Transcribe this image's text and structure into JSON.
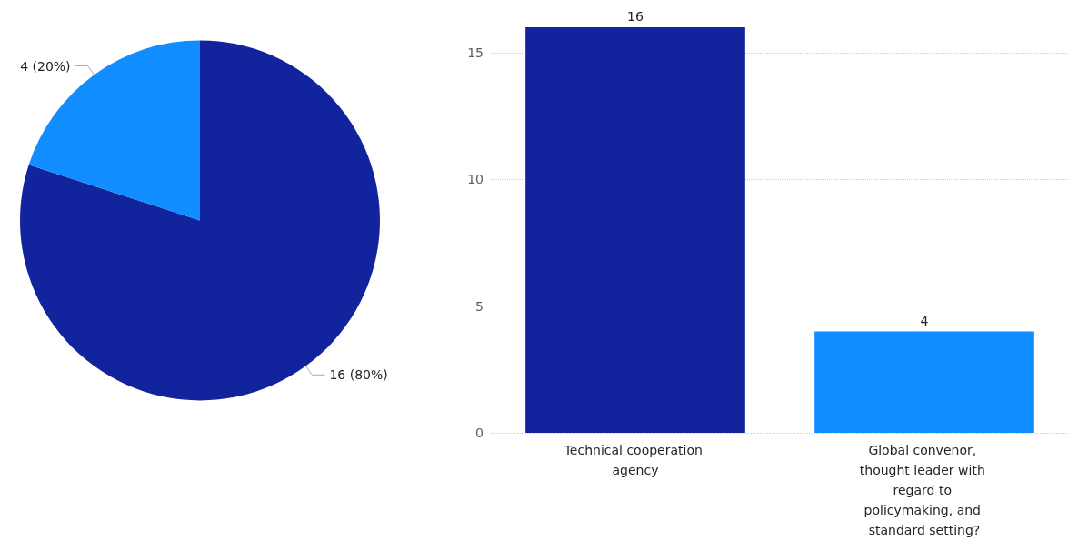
{
  "chart_data": [
    {
      "type": "pie",
      "categories": [
        null,
        null
      ],
      "values": [
        16,
        4
      ],
      "colors": [
        "#12239e",
        "#118dff"
      ],
      "value_labels": [
        "16 (80%)",
        "4 (20%)"
      ]
    },
    {
      "type": "bar",
      "categories": [
        "Technical cooperation agency",
        "Global convenor, thought leader with regard to policymaking, and standard setting?"
      ],
      "values": [
        16,
        4
      ],
      "colors": [
        "#12239e",
        "#118dff"
      ],
      "ylim": [
        0,
        16
      ],
      "yticks": [
        0,
        5,
        10,
        15
      ],
      "grid": "y",
      "data_labels": true
    }
  ]
}
